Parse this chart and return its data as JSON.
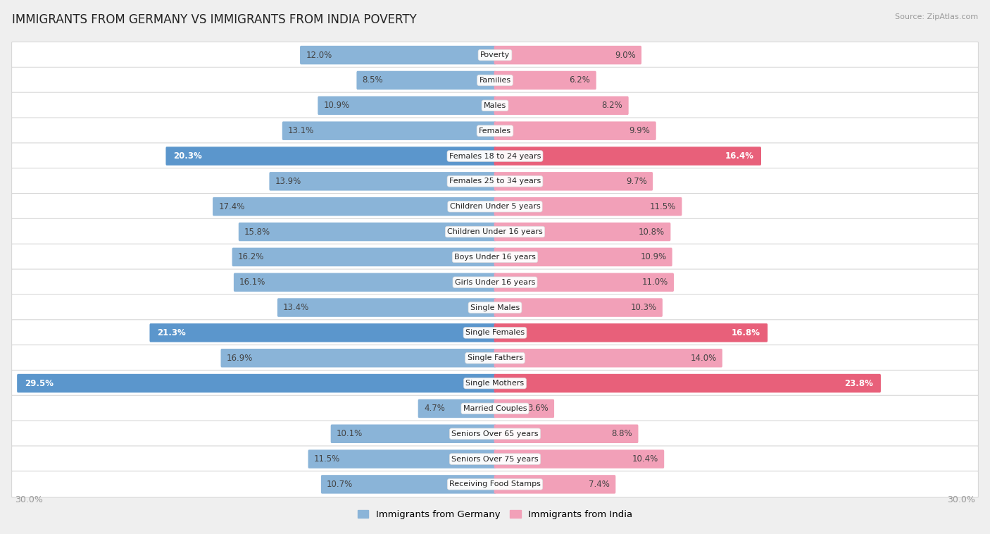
{
  "title": "IMMIGRANTS FROM GERMANY VS IMMIGRANTS FROM INDIA POVERTY",
  "source": "Source: ZipAtlas.com",
  "categories": [
    "Poverty",
    "Families",
    "Males",
    "Females",
    "Females 18 to 24 years",
    "Females 25 to 34 years",
    "Children Under 5 years",
    "Children Under 16 years",
    "Boys Under 16 years",
    "Girls Under 16 years",
    "Single Males",
    "Single Females",
    "Single Fathers",
    "Single Mothers",
    "Married Couples",
    "Seniors Over 65 years",
    "Seniors Over 75 years",
    "Receiving Food Stamps"
  ],
  "germany_values": [
    12.0,
    8.5,
    10.9,
    13.1,
    20.3,
    13.9,
    17.4,
    15.8,
    16.2,
    16.1,
    13.4,
    21.3,
    16.9,
    29.5,
    4.7,
    10.1,
    11.5,
    10.7
  ],
  "india_values": [
    9.0,
    6.2,
    8.2,
    9.9,
    16.4,
    9.7,
    11.5,
    10.8,
    10.9,
    11.0,
    10.3,
    16.8,
    14.0,
    23.8,
    3.6,
    8.8,
    10.4,
    7.4
  ],
  "germany_color": "#8ab4d8",
  "india_color": "#f2a0b8",
  "germany_highlight_color": "#5b96cc",
  "india_highlight_color": "#e8607a",
  "highlight_rows": [
    4,
    11,
    13
  ],
  "xlim": 30.0,
  "background_color": "#efefef",
  "row_bg_color": "#ffffff",
  "row_alt_color": "#f8f8f8",
  "axis_label_color": "#999999",
  "title_fontsize": 12,
  "bar_height": 0.62,
  "legend_germany": "Immigrants from Germany",
  "legend_india": "Immigrants from India"
}
